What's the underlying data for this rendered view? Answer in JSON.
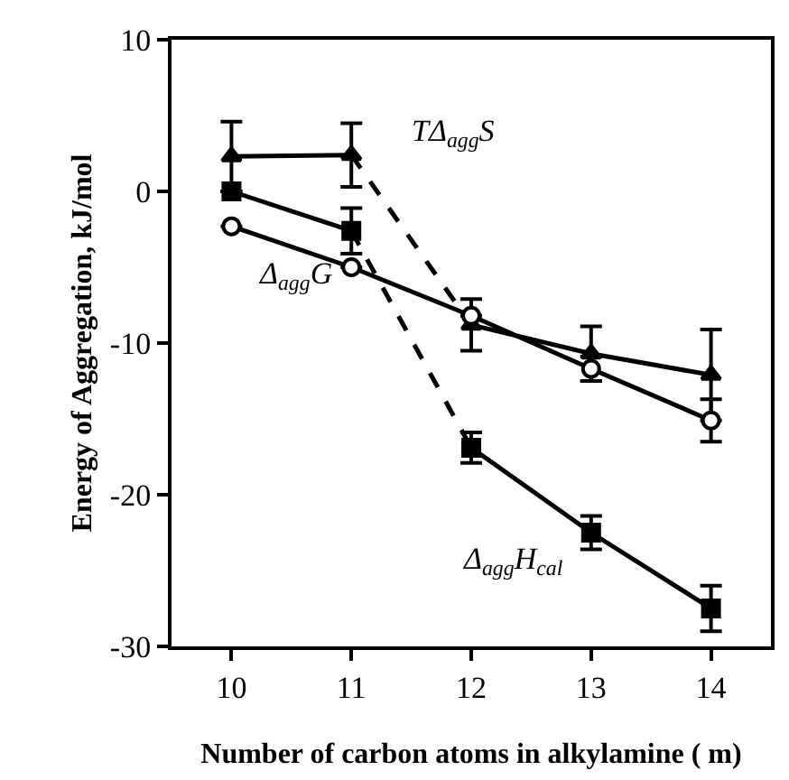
{
  "chart_data": {
    "type": "line",
    "xlabel": "Number of carbon atoms in alkylamine ( m)",
    "ylabel": "Energy of Aggregation, kJ/mol",
    "xlim": [
      9.5,
      14.5
    ],
    "ylim": [
      -30,
      10
    ],
    "xticks": [
      10,
      11,
      12,
      13,
      14
    ],
    "yticks": [
      -30,
      -20,
      -10,
      0,
      10
    ],
    "series": [
      {
        "color": "#000000",
        "marker": "triangle",
        "line_style": "solid",
        "x": [
          10,
          11
        ],
        "values": [
          2.3,
          2.4
        ],
        "errors": [
          2.3,
          2.1
        ]
      },
      {
        "color": "#000000",
        "line_style": "dashed",
        "x": [
          11,
          12
        ],
        "values": [
          2.4,
          -8.8
        ]
      },
      {
        "color": "#000000",
        "marker": "triangle",
        "line_style": "solid",
        "x": [
          12,
          13,
          14
        ],
        "values": [
          -8.8,
          -10.7,
          -12.1
        ],
        "errors": [
          1.7,
          1.8,
          3.0
        ]
      },
      {
        "color": "#000000",
        "marker": "circle",
        "line_style": "solid",
        "x": [
          10,
          11,
          12,
          13,
          14
        ],
        "values": [
          -2.3,
          -5.0,
          -8.2,
          -11.7,
          -15.1
        ],
        "errors": [
          null,
          null,
          null,
          0.8,
          1.4
        ]
      },
      {
        "color": "#000000",
        "marker": "square",
        "line_style": "solid",
        "x": [
          10,
          11
        ],
        "values": [
          0,
          -2.6
        ],
        "errors": [
          null,
          1.5
        ]
      },
      {
        "color": "#000000",
        "line_style": "dashed",
        "x": [
          11,
          12
        ],
        "values": [
          -2.6,
          -16.9
        ]
      },
      {
        "color": "#000000",
        "marker": "square",
        "line_style": "solid",
        "x": [
          12,
          13,
          14
        ],
        "values": [
          -16.9,
          -22.5,
          -27.5
        ],
        "errors": [
          1.0,
          1.1,
          1.5
        ]
      }
    ],
    "annotations": [
      "TΔ$_{agg}$S",
      "Δ$_{agg}$G",
      "Δ$_{agg}$H$_{cal}$"
    ]
  }
}
